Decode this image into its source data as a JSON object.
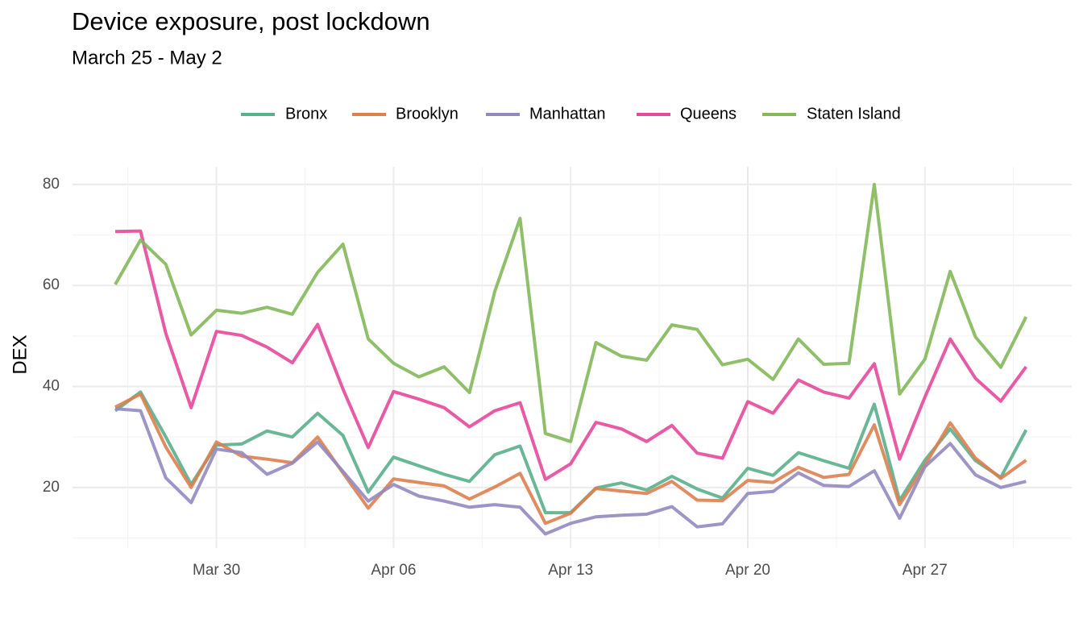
{
  "chart_data": {
    "type": "line",
    "title": "Device exposure, post lockdown",
    "subtitle": "March 25 - May 2",
    "y_label": "DEX",
    "x": [
      "Mar 26",
      "Mar 27",
      "Mar 28",
      "Mar 29",
      "Mar 30",
      "Mar 31",
      "Apr 01",
      "Apr 02",
      "Apr 03",
      "Apr 04",
      "Apr 05",
      "Apr 06",
      "Apr 07",
      "Apr 08",
      "Apr 09",
      "Apr 10",
      "Apr 11",
      "Apr 12",
      "Apr 13",
      "Apr 14",
      "Apr 15",
      "Apr 16",
      "Apr 17",
      "Apr 18",
      "Apr 19",
      "Apr 20",
      "Apr 21",
      "Apr 22",
      "Apr 23",
      "Apr 24",
      "Apr 25",
      "Apr 26",
      "Apr 27",
      "Apr 28",
      "Apr 29",
      "Apr 30",
      "May 01"
    ],
    "xticks": [
      "Mar 30",
      "Apr 06",
      "Apr 13",
      "Apr 20",
      "Apr 27"
    ],
    "ylim": [
      8,
      83.5
    ],
    "yticks": [
      20,
      40,
      60,
      80
    ],
    "grid": true,
    "legend": "top",
    "series": [
      {
        "name": "Bronx",
        "color": "#5aaf8c",
        "values": [
          35.2,
          38.9,
          30,
          20.6,
          28.4,
          28.6,
          31.2,
          30.0,
          34.7,
          30.3,
          19.1,
          26.0,
          24.3,
          22.6,
          21.2,
          26.5,
          28.2,
          15.0,
          15.0,
          19.9,
          20.9,
          19.5,
          22.2,
          19.7,
          17.9,
          23.8,
          22.4,
          26.9,
          25.3,
          23.8,
          36.5,
          17.4,
          25.4,
          31.6,
          25.3,
          22.0,
          31.4
        ]
      },
      {
        "name": "Brooklyn",
        "color": "#dd7f4f",
        "values": [
          35.9,
          38.5,
          28,
          20.0,
          29.0,
          26.2,
          25.6,
          24.9,
          30.0,
          22.9,
          15.9,
          21.7,
          21.0,
          20.3,
          17.7,
          20.1,
          22.8,
          12.9,
          14.9,
          19.8,
          19.3,
          18.8,
          21.2,
          17.5,
          17.4,
          21.4,
          21.0,
          24.0,
          22.0,
          22.6,
          32.4,
          16.6,
          24.4,
          32.8,
          25.8,
          21.8,
          25.4
        ]
      },
      {
        "name": "Manhattan",
        "color": "#9389c0",
        "values": [
          35.6,
          35.2,
          21.9,
          17.0,
          27.6,
          26.9,
          22.6,
          24.8,
          29.0,
          23.2,
          17.3,
          20.6,
          18.3,
          17.3,
          16.1,
          16.6,
          16.1,
          10.8,
          12.9,
          14.2,
          14.5,
          14.7,
          16.2,
          12.2,
          12.8,
          18.8,
          19.2,
          22.9,
          20.4,
          20.2,
          23.3,
          13.9,
          24.1,
          28.7,
          22.5,
          20.0,
          21.2
        ]
      },
      {
        "name": "Queens",
        "color": "#e7489b",
        "values": [
          70.7,
          70.8,
          50.5,
          35.8,
          50.9,
          50.1,
          47.8,
          44.7,
          52.3,
          39.5,
          27.9,
          39.0,
          37.5,
          35.8,
          32.0,
          35.2,
          36.8,
          21.6,
          24.7,
          32.9,
          31.6,
          29.1,
          32.3,
          26.8,
          25.8,
          37.0,
          34.7,
          41.3,
          38.9,
          37.7,
          44.5,
          25.6,
          37.9,
          49.4,
          41.6,
          37.1,
          43.9
        ]
      },
      {
        "name": "Staten Island",
        "color": "#84b85a",
        "values": [
          60.2,
          69.0,
          64.2,
          50.2,
          55.1,
          54.5,
          55.7,
          54.3,
          62.6,
          68.2,
          49.4,
          44.6,
          41.9,
          43.9,
          38.8,
          58.8,
          73.3,
          30.7,
          29.1,
          48.7,
          46.0,
          45.2,
          52.2,
          51.3,
          44.3,
          45.4,
          41.4,
          49.4,
          44.4,
          44.6,
          80.0,
          38.5,
          45.4,
          62.8,
          49.8,
          43.8,
          53.8
        ]
      }
    ]
  }
}
